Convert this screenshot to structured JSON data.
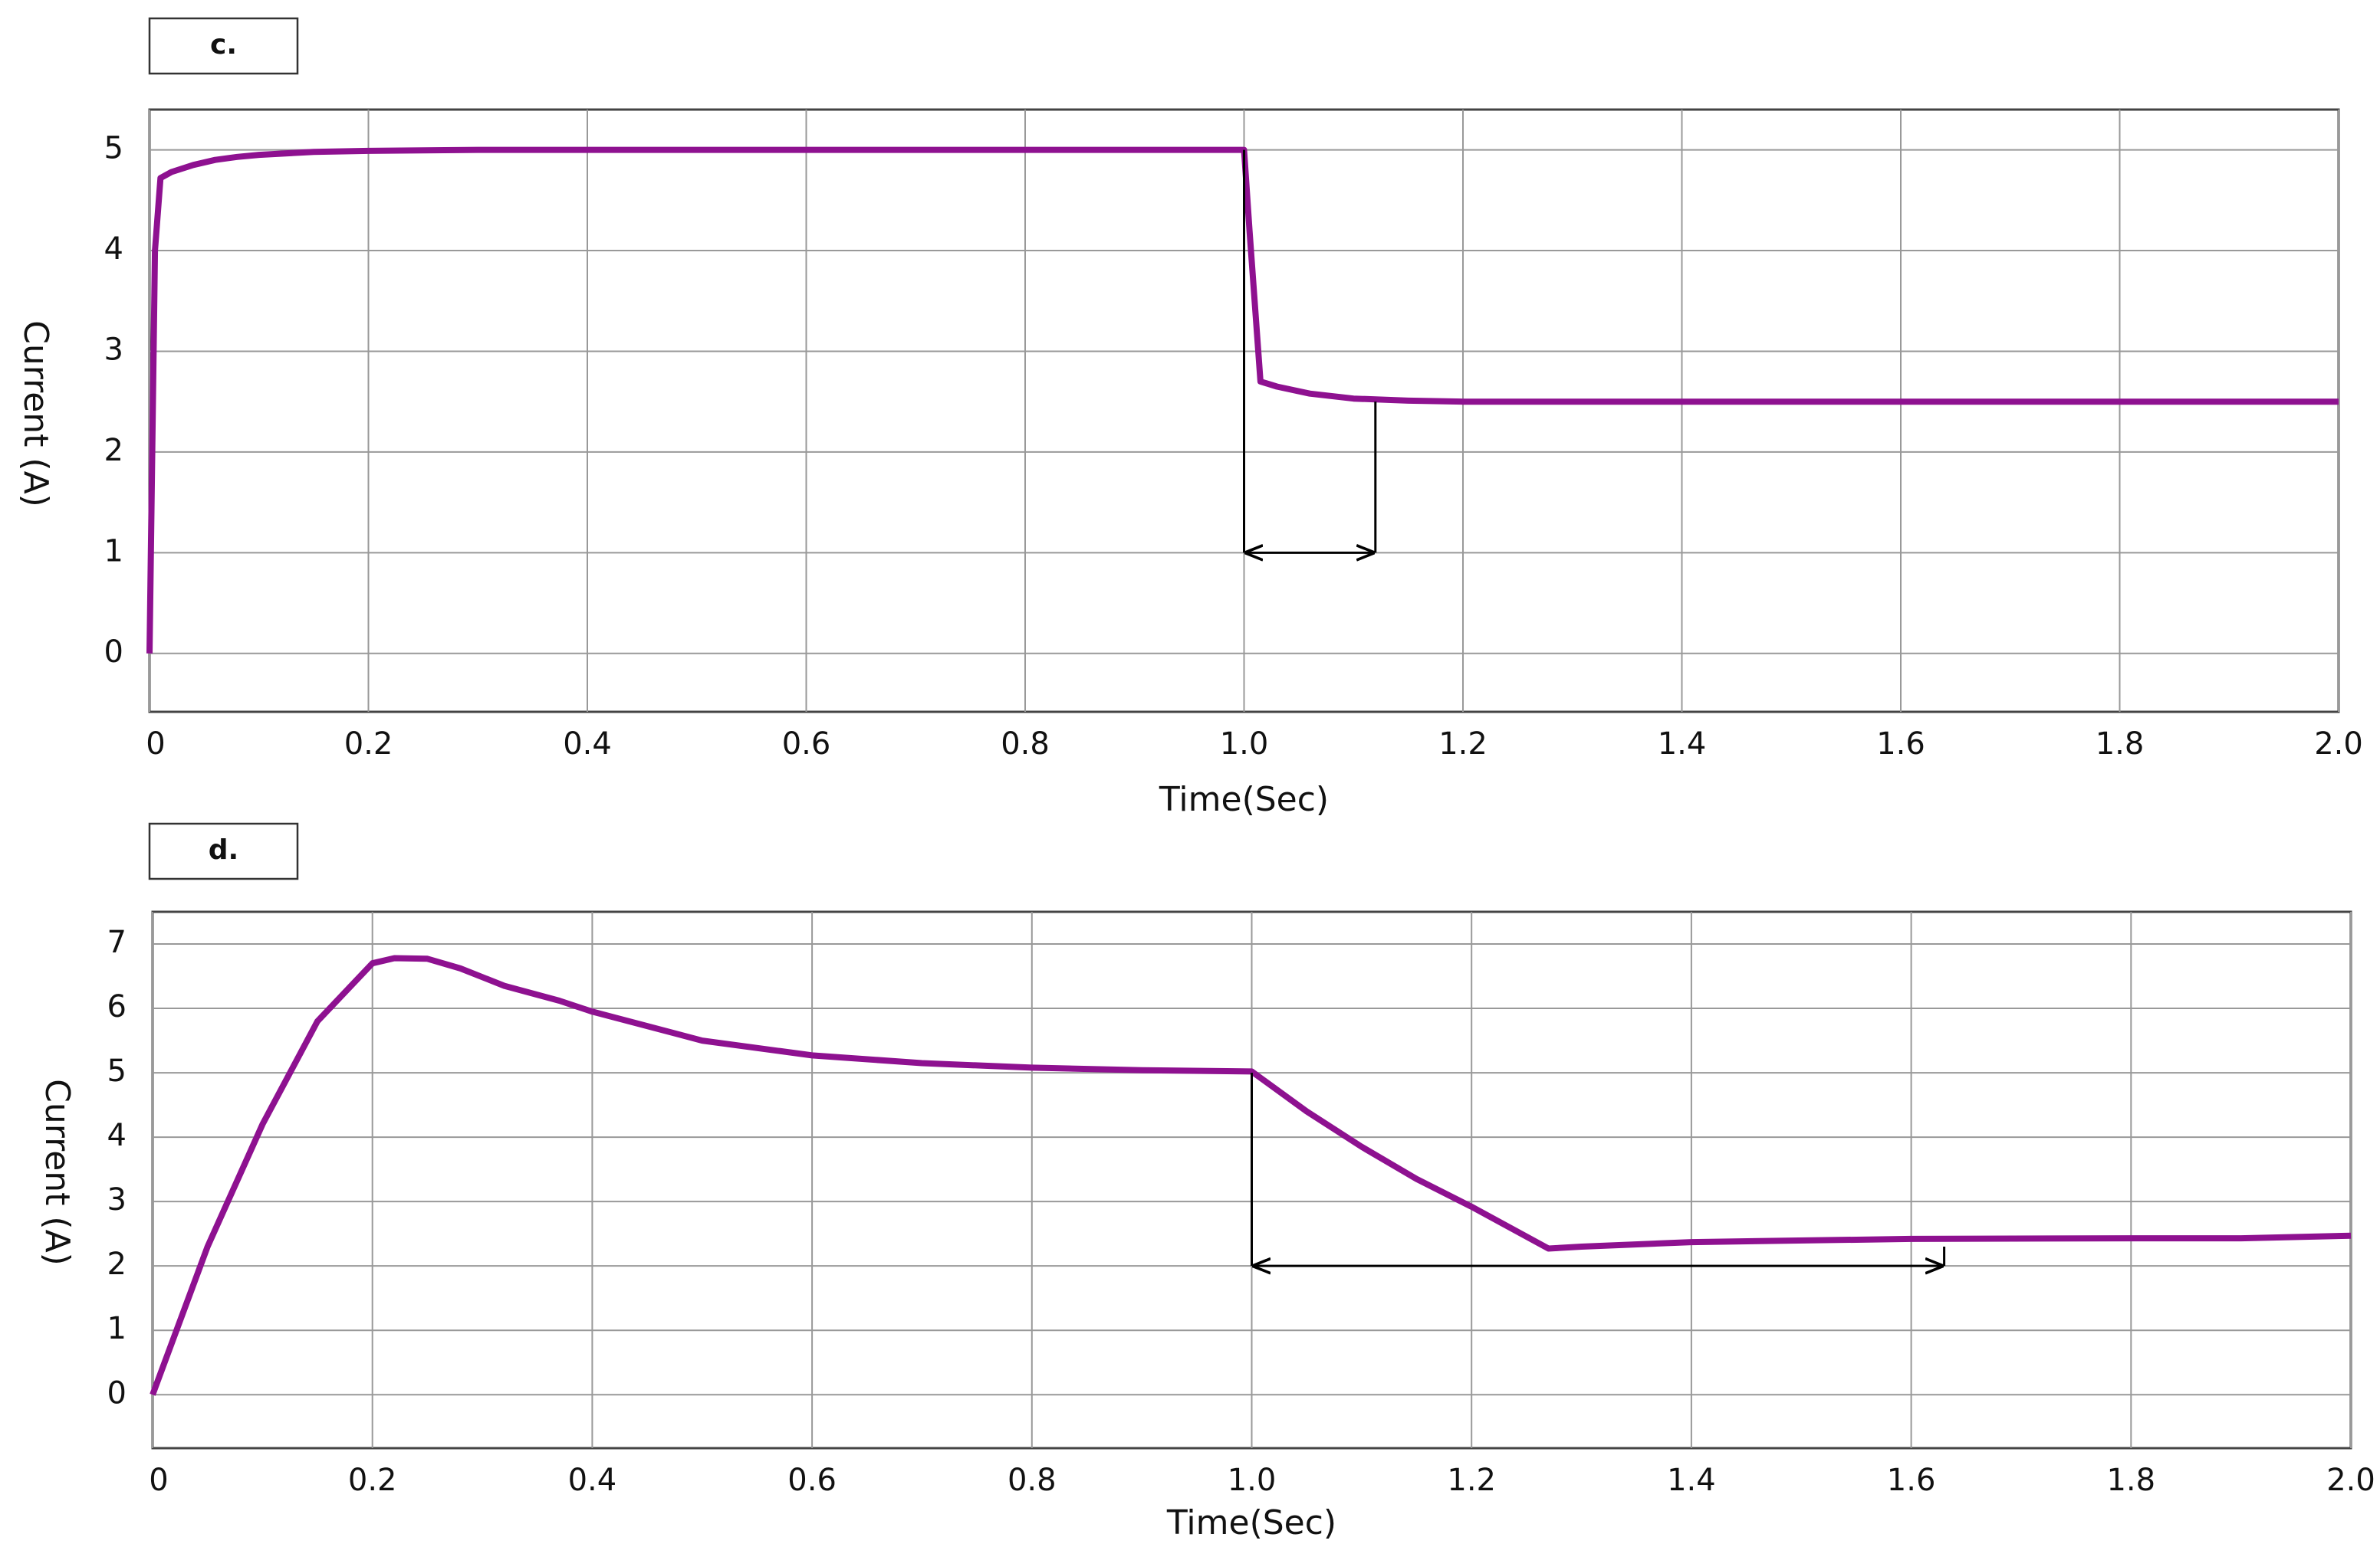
{
  "chart_data": [
    {
      "type": "line",
      "panel_label": "c.",
      "x_label": "Time(Sec)",
      "y_label": "Current (A)",
      "xlim": [
        0,
        2
      ],
      "ylim": [
        -0.58,
        5.4
      ],
      "grid": true,
      "xticks": [
        0,
        0.2,
        0.4,
        0.6,
        0.8,
        {
          "value": 1,
          "label": "1.0"
        },
        1.2,
        1.4,
        1.6,
        1.8,
        {
          "value": 2,
          "label": "2.0"
        }
      ],
      "yticks": [
        0,
        1,
        2,
        3,
        4,
        5
      ],
      "x": [
        0,
        0.005,
        0.01,
        0.02,
        0.04,
        0.06,
        0.08,
        0.1,
        0.15,
        0.2,
        0.3,
        0.5,
        0.7,
        0.9,
        1.0,
        1.005,
        1.015,
        1.03,
        1.06,
        1.1,
        1.15,
        1.2,
        1.4,
        1.6,
        1.8,
        2.0
      ],
      "series": [
        {
          "color": "#8e1190",
          "values": [
            0,
            4.0,
            4.72,
            4.78,
            4.85,
            4.9,
            4.93,
            4.95,
            4.98,
            4.99,
            5,
            5,
            5,
            5,
            5,
            4.2,
            2.7,
            2.65,
            2.58,
            2.53,
            2.51,
            2.5,
            2.5,
            2.5,
            2.5,
            2.5
          ]
        }
      ],
      "settling_arrow": {
        "x": [
          1.0,
          1.12
        ],
        "y": 1,
        "y_top": [
          5,
          2.5
        ]
      }
    },
    {
      "type": "line",
      "panel_label": "d.",
      "x_label": "Time(Sec)",
      "y_label": "Current (A)",
      "xlim": [
        0,
        2
      ],
      "ylim": [
        -0.83,
        7.5
      ],
      "grid": true,
      "xticks": [
        0,
        0.2,
        0.4,
        0.6,
        0.8,
        {
          "value": 1,
          "label": "1.0"
        },
        1.2,
        1.4,
        1.6,
        1.8,
        {
          "value": 2,
          "label": "2.0"
        }
      ],
      "yticks": [
        0,
        1,
        2,
        3,
        4,
        5,
        6,
        7
      ],
      "x": [
        0,
        0.05,
        0.1,
        0.15,
        0.2,
        0.22,
        0.25,
        0.28,
        0.32,
        0.37,
        0.4,
        0.5,
        0.6,
        0.7,
        0.8,
        0.9,
        1.0,
        1.05,
        1.1,
        1.15,
        1.2,
        1.27,
        1.3,
        1.4,
        1.6,
        1.8,
        1.9,
        2.0
      ],
      "series": [
        {
          "color": "#8e1190",
          "values": [
            0,
            2.3,
            4.2,
            5.8,
            6.7,
            6.78,
            6.77,
            6.62,
            6.35,
            6.12,
            5.95,
            5.5,
            5.27,
            5.15,
            5.08,
            5.04,
            5.02,
            4.4,
            3.85,
            3.35,
            2.92,
            2.27,
            2.3,
            2.37,
            2.42,
            2.43,
            2.43,
            2.47
          ]
        }
      ],
      "settling_arrow": {
        "x": [
          1.0,
          1.63
        ],
        "y": 2,
        "y_top": [
          5,
          2.3
        ]
      }
    }
  ]
}
